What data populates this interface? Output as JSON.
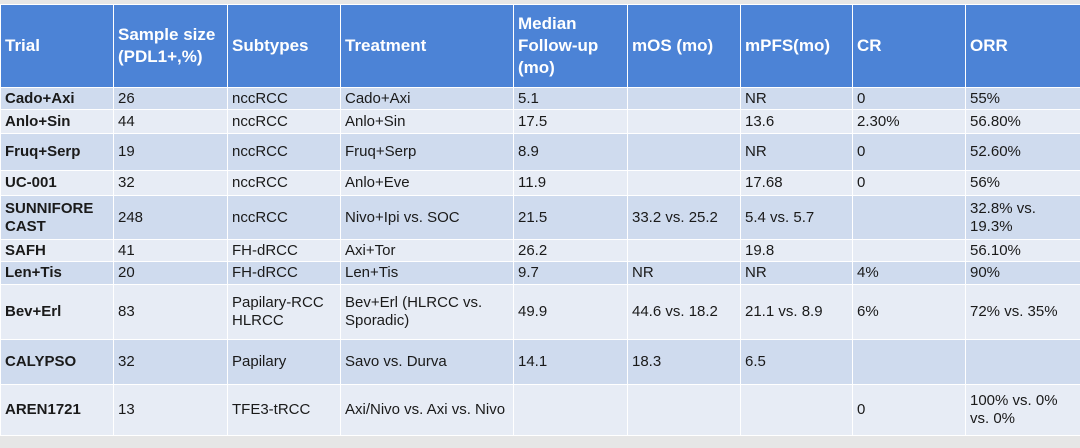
{
  "table": {
    "headers": [
      "Trial",
      "Sample size (PDL1+,%)",
      "Subtypes",
      "Treatment",
      "Median Follow-up (mo)",
      "mOS (mo)",
      "mPFS(mo)",
      "CR",
      "ORR"
    ],
    "rows": [
      [
        "Cado+Axi",
        "26",
        "nccRCC",
        "Cado+Axi",
        "5.1",
        null,
        "NR",
        "0",
        "55%"
      ],
      [
        "Anlo+Sin",
        "44",
        "nccRCC",
        "Anlo+Sin",
        "17.5",
        null,
        "13.6",
        "2.30%",
        "56.80%"
      ],
      [
        "Fruq+Serp",
        "19",
        "nccRCC",
        "Fruq+Serp",
        "8.9",
        null,
        "NR",
        "0",
        "52.60%"
      ],
      [
        "UC-001",
        "32",
        "nccRCC",
        "Anlo+Eve",
        "11.9",
        null,
        "17.68",
        "0",
        "56%"
      ],
      [
        "SUNNIFORE CAST",
        "248",
        "nccRCC",
        "Nivo+Ipi vs. SOC",
        "21.5",
        "33.2 vs. 25.2",
        "5.4 vs. 5.7",
        null,
        "32.8% vs. 19.3%"
      ],
      [
        "SAFH",
        "41",
        "FH-dRCC",
        "Axi+Tor",
        "26.2",
        null,
        "19.8",
        null,
        "56.10%"
      ],
      [
        "Len+Tis",
        "20",
        "FH-dRCC",
        "Len+Tis",
        "9.7",
        "NR",
        "NR",
        "4%",
        "90%"
      ],
      [
        "Bev+Erl",
        "83",
        "Papilary-RCC HLRCC",
        "Bev+Erl (HLRCC vs. Sporadic)",
        "49.9",
        "44.6 vs. 18.2",
        "21.1 vs. 8.9",
        "6%",
        "72% vs. 35%"
      ],
      [
        "CALYPSO",
        "32",
        "Papilary",
        "Savo vs. Durva",
        "14.1",
        "18.3",
        "6.5",
        null,
        null
      ],
      [
        "AREN1721",
        "13",
        "TFE3-tRCC",
        "Axi/Nivo vs. Axi vs. Nivo",
        null,
        null,
        null,
        "0",
        "100% vs. 0% vs. 0%"
      ]
    ]
  }
}
